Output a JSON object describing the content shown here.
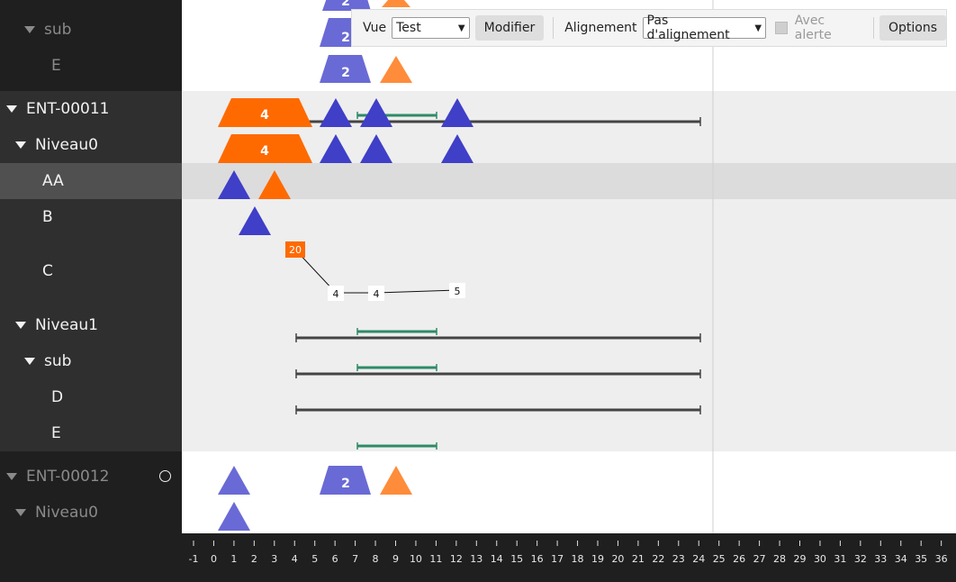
{
  "toolbar": {
    "vue_label": "Vue",
    "vue_value": "Test",
    "modifier_label": "Modifier",
    "alignement_label": "Alignement",
    "alignement_value": "Pas d'alignement",
    "alerte_label": "Avec alerte",
    "options_label": "Options"
  },
  "tree": [
    {
      "label": "sub",
      "expanded": true,
      "dim": true
    },
    {
      "label": "E",
      "dim": true
    },
    {
      "label": "ENT-00011",
      "expanded": true
    },
    {
      "label": "Niveau0",
      "expanded": true
    },
    {
      "label": "AA",
      "selected": true
    },
    {
      "label": "B"
    },
    {
      "label": "C"
    },
    {
      "label": "Niveau1",
      "expanded": true
    },
    {
      "label": "sub",
      "expanded": true
    },
    {
      "label": "D"
    },
    {
      "label": "E"
    },
    {
      "label": "ENT-00012",
      "expanded": true,
      "dim": true
    },
    {
      "label": "Niveau0",
      "expanded": true,
      "dim": true
    }
  ],
  "axis_ticks": [
    "-1",
    "0",
    "1",
    "2",
    "3",
    "4",
    "5",
    "6",
    "7",
    "8",
    "9",
    "10",
    "11",
    "12",
    "13",
    "14",
    "15",
    "16",
    "17",
    "18",
    "19",
    "20",
    "21",
    "22",
    "23",
    "24",
    "25",
    "26",
    "27",
    "28",
    "29",
    "30",
    "31",
    "32",
    "33",
    "34",
    "35",
    "36"
  ],
  "marker_labels": {
    "count_4": "4",
    "count_2": "2",
    "badge_20": "20",
    "node_4a": "4",
    "node_4b": "4",
    "node_5": "5"
  },
  "colors": {
    "orange": "#ff6a00",
    "orange_light": "#ff8c3a",
    "blue": "#3f3fc8",
    "blue_light": "#6a6ad6",
    "green": "#2e8b67",
    "bar": "#444444",
    "cursor_line": "#cfcfcf"
  }
}
